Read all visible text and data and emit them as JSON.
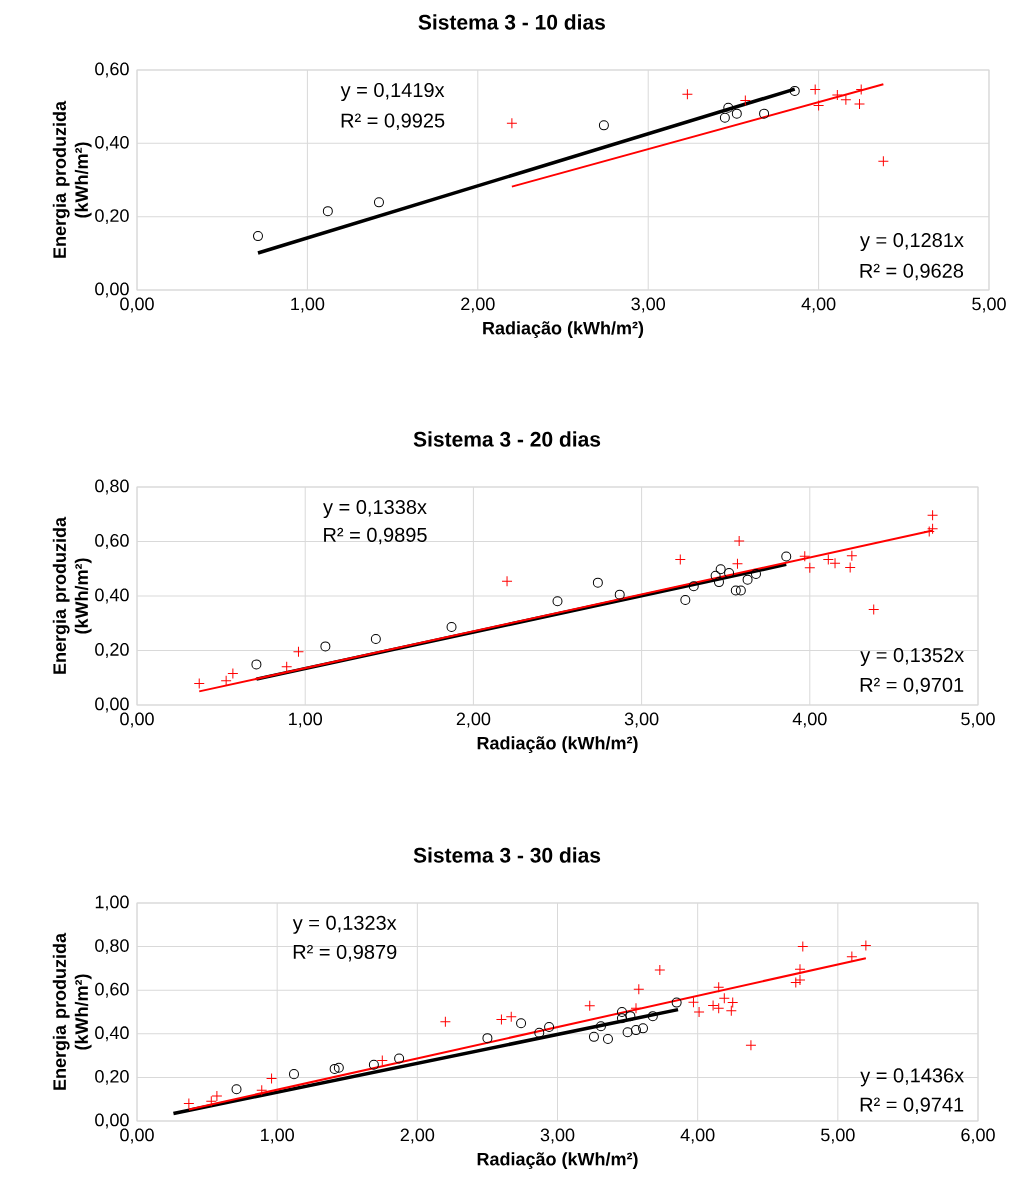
{
  "chart_data": [
    {
      "type": "scatter",
      "title": "Sistema 3 - 10 dias",
      "xlabel": "Radiação (kWh/m²)",
      "ylabel": "Energia produzida (kWh/m²)",
      "xlim": [
        0,
        5
      ],
      "ylim": [
        0,
        0.6
      ],
      "xticks": [
        {
          "value": 0,
          "label": "0,00"
        },
        {
          "value": 1,
          "label": "1,00"
        },
        {
          "value": 2,
          "label": "2,00"
        },
        {
          "value": 3,
          "label": "3,00"
        },
        {
          "value": 4,
          "label": "4,00"
        },
        {
          "value": 5,
          "label": "5,00"
        }
      ],
      "yticks": [
        {
          "value": 0,
          "label": "0,00"
        },
        {
          "value": 0.2,
          "label": "0,20"
        },
        {
          "value": 0.4,
          "label": "0,40"
        },
        {
          "value": 0.6,
          "label": "0,60"
        }
      ],
      "grid": true,
      "series": [
        {
          "color": "#000000",
          "marker": "circle",
          "x": [
            0.71,
            1.12,
            1.42,
            2.74,
            3.45,
            3.47,
            3.52,
            3.68,
            3.86
          ],
          "values": [
            0.147,
            0.215,
            0.239,
            0.449,
            0.47,
            0.497,
            0.481,
            0.481,
            0.543
          ]
        },
        {
          "color": "#ff0000",
          "marker": "cross",
          "x": [
            2.2,
            3.23,
            3.57,
            3.98,
            4.0,
            4.11,
            4.16,
            4.25,
            4.24,
            4.38
          ],
          "values": [
            0.455,
            0.534,
            0.517,
            0.547,
            0.503,
            0.532,
            0.519,
            0.547,
            0.507,
            0.351
          ]
        },
        {
          "type": "line",
          "color": "#000000",
          "marker": "none",
          "x": [
            0.71,
            3.86
          ],
          "values": [
            0.101,
            0.548
          ]
        },
        {
          "type": "line",
          "color": "#ff0000",
          "marker": "none",
          "x": [
            2.2,
            4.38
          ],
          "values": [
            0.282,
            0.561
          ]
        }
      ],
      "annotations": [
        "y = 0,1419x",
        "R² = 0,9925",
        "y = 0,1281x",
        "R² = 0,9628"
      ]
    },
    {
      "type": "scatter",
      "title": "Sistema 3 - 20 dias",
      "xlabel": "Radiação (kWh/m²)",
      "ylabel": "Energia produzida (kWh/m²)",
      "xlim": [
        0,
        5
      ],
      "ylim": [
        0,
        0.8
      ],
      "xticks": [
        {
          "value": 0,
          "label": "0,00"
        },
        {
          "value": 1,
          "label": "1,00"
        },
        {
          "value": 2,
          "label": "2,00"
        },
        {
          "value": 3,
          "label": "3,00"
        },
        {
          "value": 4,
          "label": "4,00"
        },
        {
          "value": 5,
          "label": "5,00"
        }
      ],
      "yticks": [
        {
          "value": 0,
          "label": "0,00"
        },
        {
          "value": 0.2,
          "label": "0,20"
        },
        {
          "value": 0.4,
          "label": "0,40"
        },
        {
          "value": 0.6,
          "label": "0,60"
        },
        {
          "value": 0.8,
          "label": "0,80"
        }
      ],
      "grid": true,
      "series": [
        {
          "color": "#000000",
          "marker": "circle",
          "x": [
            0.71,
            1.12,
            1.42,
            1.87,
            2.5,
            2.74,
            2.87,
            3.26,
            3.31,
            3.44,
            3.47,
            3.46,
            3.52,
            3.56,
            3.59,
            3.63,
            3.68,
            3.86
          ],
          "values": [
            0.149,
            0.215,
            0.242,
            0.286,
            0.381,
            0.449,
            0.405,
            0.385,
            0.436,
            0.474,
            0.498,
            0.451,
            0.484,
            0.42,
            0.42,
            0.46,
            0.481,
            0.545
          ]
        },
        {
          "color": "#ff0000",
          "marker": "cross",
          "x": [
            0.37,
            0.53,
            0.57,
            0.89,
            0.96,
            2.2,
            3.23,
            3.58,
            3.57,
            3.97,
            4.0,
            4.11,
            4.15,
            4.25,
            4.24,
            4.38,
            4.71,
            4.73,
            4.73
          ],
          "values": [
            0.079,
            0.089,
            0.116,
            0.14,
            0.195,
            0.454,
            0.534,
            0.602,
            0.518,
            0.546,
            0.504,
            0.534,
            0.52,
            0.548,
            0.505,
            0.35,
            0.637,
            0.647,
            0.696
          ]
        },
        {
          "type": "line",
          "color": "#000000",
          "marker": "none",
          "x": [
            0.71,
            3.86
          ],
          "values": [
            0.095,
            0.516
          ]
        },
        {
          "type": "line",
          "color": "#ff0000",
          "marker": "none",
          "x": [
            0.37,
            4.73
          ],
          "values": [
            0.05,
            0.64
          ]
        }
      ],
      "annotations": [
        "y = 0,1338x",
        "R² = 0,9895",
        "y = 0,1352x",
        "R² = 0,9701"
      ]
    },
    {
      "type": "scatter",
      "title": "Sistema 3 - 30 dias",
      "xlabel": "Radiação (kWh/m²)",
      "ylabel": "Energia produzida (kWh/m²)",
      "xlim": [
        0,
        6
      ],
      "ylim": [
        0,
        1.0
      ],
      "xticks": [
        {
          "value": 0,
          "label": "0,00"
        },
        {
          "value": 1,
          "label": "1,00"
        },
        {
          "value": 2,
          "label": "2,00"
        },
        {
          "value": 3,
          "label": "3,00"
        },
        {
          "value": 4,
          "label": "4,00"
        },
        {
          "value": 5,
          "label": "5,00"
        },
        {
          "value": 6,
          "label": "6,00"
        }
      ],
      "yticks": [
        {
          "value": 0,
          "label": "0,00"
        },
        {
          "value": 0.2,
          "label": "0,20"
        },
        {
          "value": 0.4,
          "label": "0,40"
        },
        {
          "value": 0.6,
          "label": "0,60"
        },
        {
          "value": 0.8,
          "label": "0,80"
        },
        {
          "value": 1.0,
          "label": "1,00"
        }
      ],
      "grid": true,
      "series": [
        {
          "color": "#000000",
          "marker": "circle",
          "x": [
            0.71,
            1.12,
            1.41,
            1.44,
            1.69,
            1.87,
            2.5,
            2.74,
            2.87,
            2.94,
            3.26,
            3.36,
            3.31,
            3.46,
            3.46,
            3.5,
            3.52,
            3.56,
            3.61,
            3.68,
            3.85
          ],
          "values": [
            0.146,
            0.215,
            0.239,
            0.244,
            0.258,
            0.287,
            0.38,
            0.448,
            0.405,
            0.431,
            0.386,
            0.376,
            0.435,
            0.5,
            0.471,
            0.407,
            0.481,
            0.417,
            0.425,
            0.481,
            0.543
          ]
        },
        {
          "color": "#ff0000",
          "marker": "cross",
          "x": [
            0.37,
            0.53,
            0.57,
            0.89,
            0.96,
            1.75,
            2.2,
            2.6,
            2.67,
            3.23,
            3.56,
            3.58,
            3.73,
            3.97,
            4.01,
            4.11,
            4.15,
            4.15,
            4.19,
            4.25,
            4.24,
            4.38,
            4.7,
            4.73,
            4.73,
            4.75,
            5.1,
            5.2
          ],
          "values": [
            0.08,
            0.091,
            0.115,
            0.141,
            0.195,
            0.278,
            0.455,
            0.466,
            0.478,
            0.529,
            0.517,
            0.604,
            0.693,
            0.545,
            0.5,
            0.53,
            0.613,
            0.517,
            0.563,
            0.543,
            0.506,
            0.348,
            0.635,
            0.647,
            0.696,
            0.8,
            0.754,
            0.805
          ]
        },
        {
          "type": "line",
          "color": "#000000",
          "marker": "none",
          "x": [
            0.26,
            3.86
          ],
          "values": [
            0.034,
            0.511
          ]
        },
        {
          "type": "line",
          "color": "#ff0000",
          "marker": "none",
          "x": [
            0.37,
            5.2
          ],
          "values": [
            0.053,
            0.747
          ]
        }
      ],
      "annotations": [
        "y = 0,1323x",
        "R² = 0,9879",
        "y = 0,1436x",
        "R² = 0,9741"
      ]
    }
  ]
}
